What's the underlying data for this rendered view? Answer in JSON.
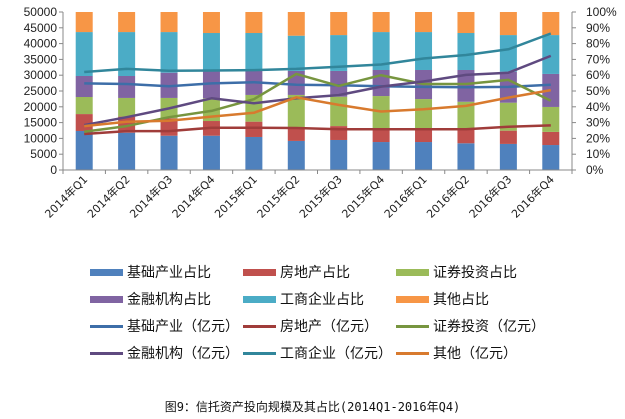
{
  "chart_data": {
    "type": "bar",
    "title": "图9：信托资产投向规模及其占比(2014Q1-2016年Q4)",
    "categories": [
      "2014年Q1",
      "2014年Q2",
      "2014年Q3",
      "2014年Q4",
      "2015年Q1",
      "2015年Q2",
      "2015年Q3",
      "2015年Q4",
      "2016年Q1",
      "2016年Q2",
      "2016年Q3",
      "2016年Q4"
    ],
    "left_axis": {
      "min": 0,
      "max": 50000,
      "step": 5000,
      "ticks": [
        "0",
        "5000",
        "10000",
        "15000",
        "20000",
        "25000",
        "30000",
        "35000",
        "40000",
        "45000",
        "50000"
      ]
    },
    "right_axis": {
      "min": 0,
      "max": 100,
      "step": 10,
      "ticks": [
        "0%",
        "10%",
        "20%",
        "30%",
        "40%",
        "50%",
        "60%",
        "70%",
        "80%",
        "90%",
        "100%"
      ]
    },
    "bar_series": [
      {
        "name": "基础产业占比",
        "color": "#4f81bd",
        "values": [
          24.7,
          23.6,
          21.7,
          21.7,
          20.9,
          18.4,
          19.0,
          17.7,
          17.7,
          16.9,
          16.5,
          15.8
        ]
      },
      {
        "name": "房地产占比",
        "color": "#c0504d",
        "values": [
          10.7,
          10.2,
          11.0,
          9.3,
          9.7,
          8.4,
          8.8,
          8.7,
          8.7,
          8.8,
          8.4,
          8.3
        ]
      },
      {
        "name": "证券投资占比",
        "color": "#9bbb59",
        "values": [
          10.8,
          11.8,
          12.9,
          14.4,
          16.9,
          20.7,
          18.6,
          20.4,
          18.5,
          17.5,
          17.7,
          15.8
        ]
      },
      {
        "name": "金融机构占比",
        "color": "#8064a2",
        "values": [
          13.3,
          13.9,
          16.0,
          17.3,
          15.2,
          15.2,
          16.3,
          16.5,
          18.4,
          20.1,
          19.6,
          20.9
        ]
      },
      {
        "name": "工商企业占比",
        "color": "#4bacc6",
        "values": [
          27.8,
          27.8,
          25.7,
          24.0,
          24.0,
          22.3,
          22.7,
          24.0,
          24.0,
          23.4,
          23.2,
          24.6
        ]
      },
      {
        "name": "其他占比",
        "color": "#f79646",
        "values": [
          12.7,
          12.7,
          12.7,
          13.3,
          13.3,
          15.0,
          14.6,
          12.7,
          12.7,
          13.3,
          14.6,
          14.6
        ]
      }
    ],
    "line_series": [
      {
        "name": "基础产业（亿元）",
        "color": "#3d6ea8",
        "values": [
          27400,
          27200,
          26500,
          27400,
          27800,
          27000,
          26800,
          26500,
          26300,
          26200,
          26300,
          27000
        ]
      },
      {
        "name": "房地产（亿元）",
        "color": "#a03c3a",
        "values": [
          11400,
          12300,
          12300,
          13400,
          13400,
          13300,
          12900,
          12900,
          12900,
          12900,
          13700,
          14100
        ]
      },
      {
        "name": "证券投资（亿元）",
        "color": "#77953f",
        "values": [
          12100,
          13900,
          16700,
          18700,
          22400,
          30400,
          26600,
          30000,
          27200,
          27200,
          28500,
          21900
        ]
      },
      {
        "name": "金融机构（亿元）",
        "color": "#5f4a80",
        "values": [
          14200,
          16700,
          19500,
          22700,
          21100,
          22700,
          23700,
          26400,
          28000,
          30100,
          30800,
          36100
        ]
      },
      {
        "name": "工商企业（亿元）",
        "color": "#31869b",
        "values": [
          31000,
          32000,
          31400,
          31500,
          31600,
          32000,
          32700,
          33400,
          35300,
          36400,
          38200,
          43200
        ]
      },
      {
        "name": "其他（亿元）",
        "color": "#d87a2e",
        "values": [
          13900,
          15300,
          15600,
          16900,
          18100,
          23000,
          20600,
          18500,
          19200,
          20300,
          22900,
          25300
        ]
      }
    ],
    "grid": false,
    "legend_position": "bottom"
  }
}
